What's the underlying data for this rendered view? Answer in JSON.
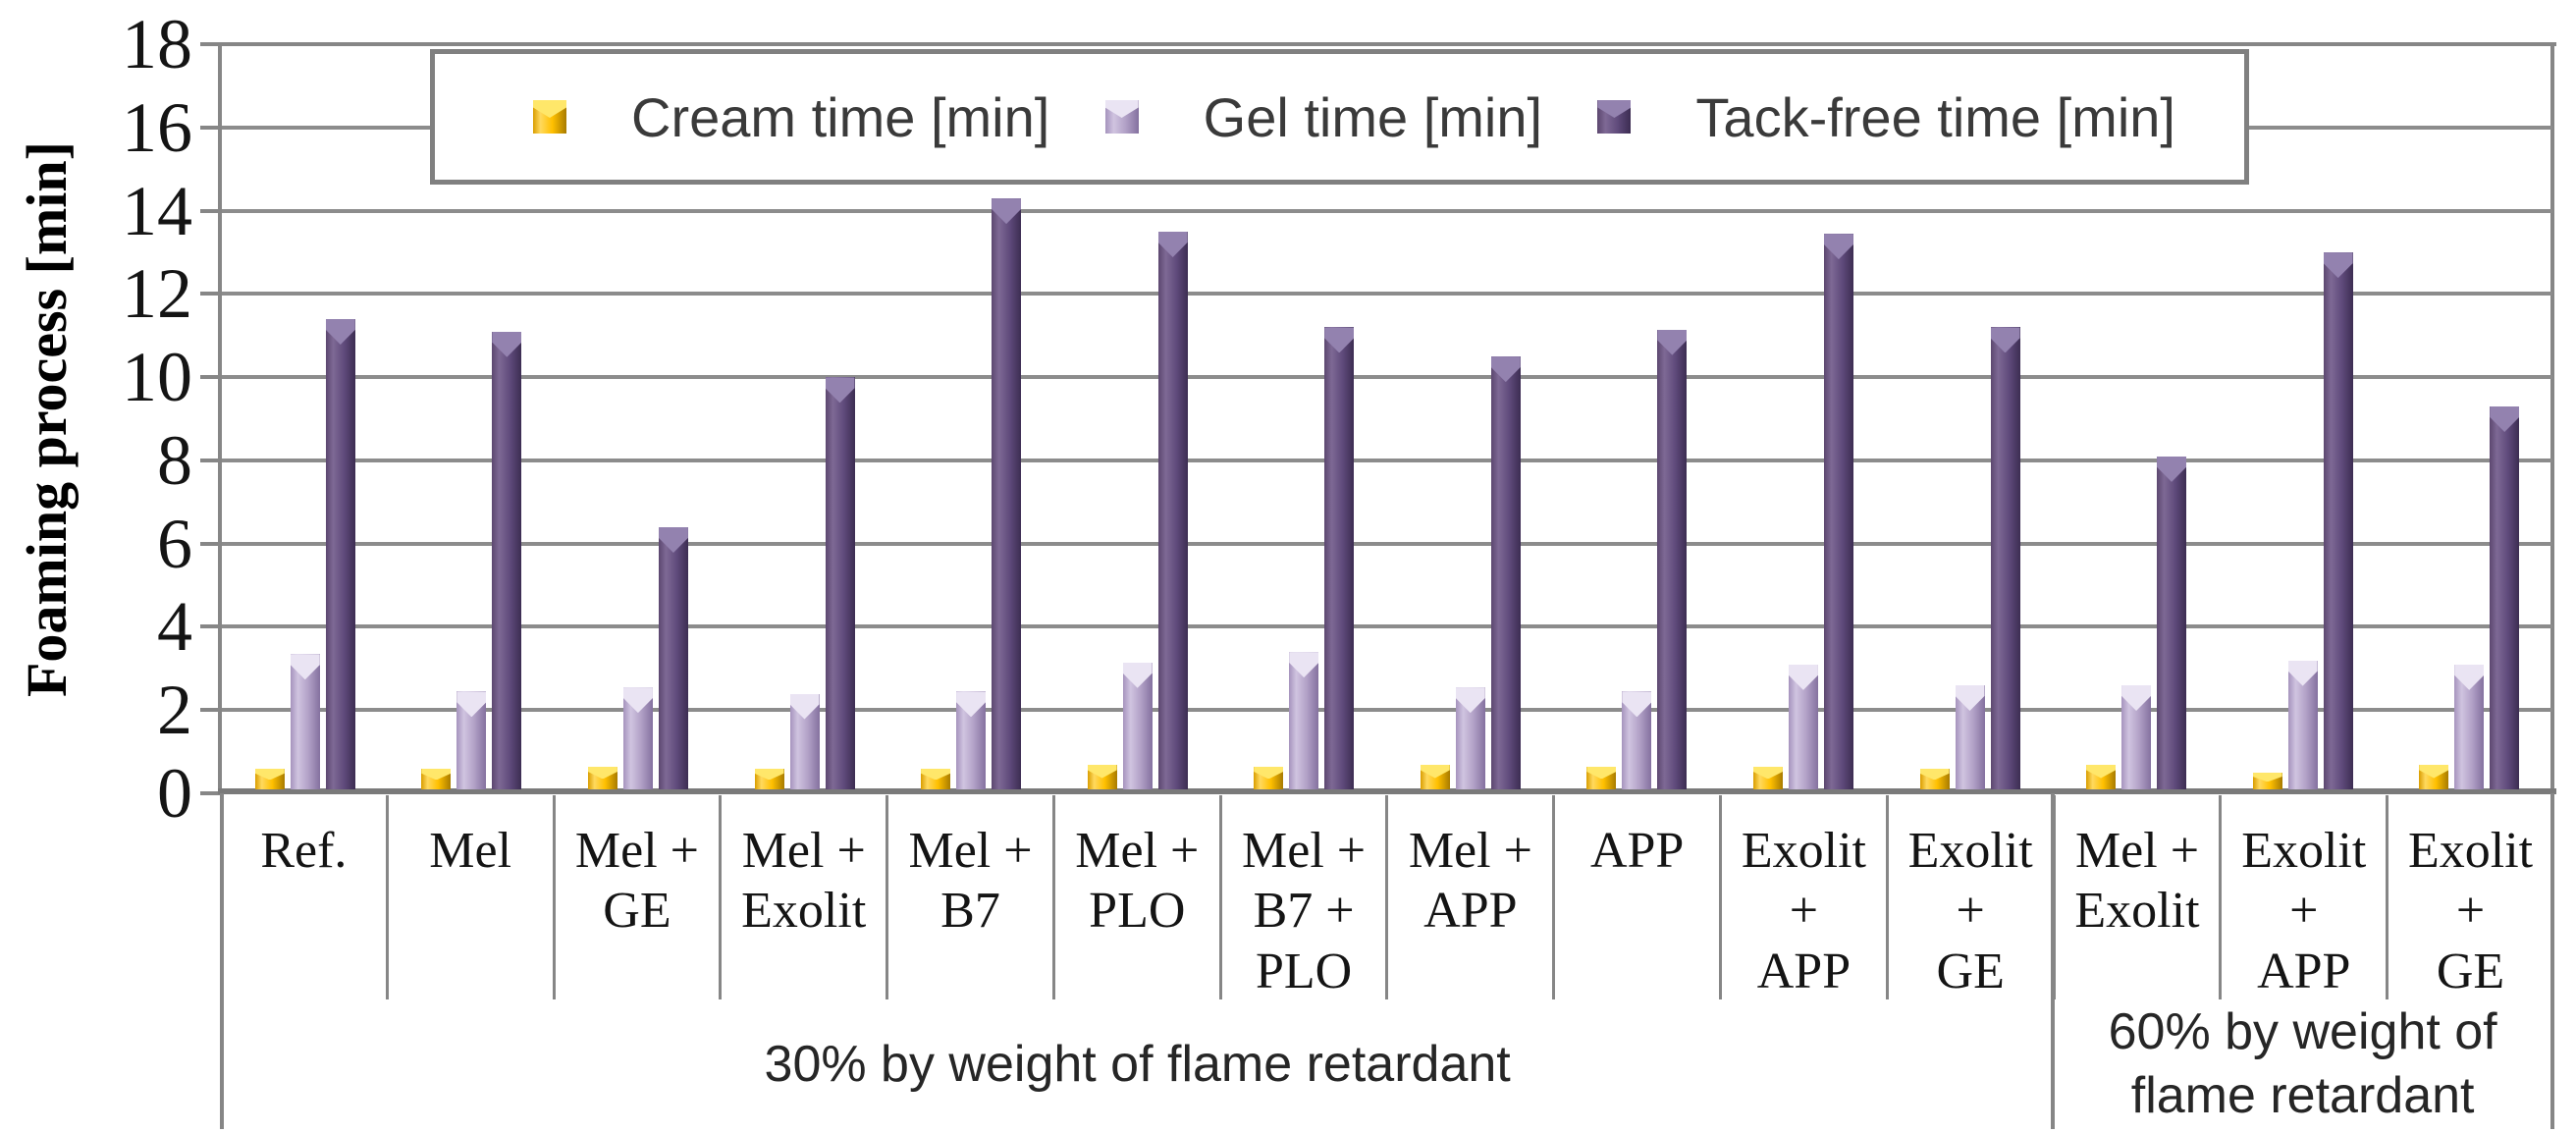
{
  "chart_data": {
    "type": "bar",
    "title": "",
    "xlabel": "",
    "ylabel": "Foaming process [min]",
    "ylim": [
      0,
      18
    ],
    "ytick_step": 2,
    "yticks": [
      0,
      2,
      4,
      6,
      8,
      10,
      12,
      14,
      16,
      18
    ],
    "grid": true,
    "legend_position": "top-center",
    "categories": [
      "Ref.",
      "Mel",
      "Mel + GE",
      "Mel + Exolit",
      "Mel + B7",
      "Mel + PLO",
      "Mel + B7 + PLO",
      "Mel + APP",
      "APP",
      "Exolit + APP",
      "Exolit + GE",
      "Mel + Exolit",
      "Exolit + APP",
      "Exolit + GE"
    ],
    "category_label_lines": [
      [
        "Ref."
      ],
      [
        "Mel"
      ],
      [
        "Mel +",
        "GE"
      ],
      [
        "Mel +",
        "Exolit"
      ],
      [
        "Mel +",
        "B7"
      ],
      [
        "Mel +",
        "PLO"
      ],
      [
        "Mel +",
        "B7 +",
        "PLO"
      ],
      [
        "Mel +",
        "APP"
      ],
      [
        "APP"
      ],
      [
        "Exolit +",
        "APP"
      ],
      [
        "Exolit +",
        "GE"
      ],
      [
        "Mel +",
        "Exolit"
      ],
      [
        "Exolit +",
        "APP"
      ],
      [
        "Exolit +",
        "GE"
      ]
    ],
    "groups": [
      {
        "label": "30% by weight of flame retardant",
        "start": 0,
        "end": 10
      },
      {
        "label": "60% by weight of flame retardant",
        "start": 11,
        "end": 13
      }
    ],
    "series": [
      {
        "key": "cream",
        "name": "Cream time [min]",
        "color": "#FFC000",
        "values": [
          0.5,
          0.5,
          0.55,
          0.5,
          0.5,
          0.6,
          0.55,
          0.6,
          0.55,
          0.55,
          0.5,
          0.6,
          0.4,
          0.6
        ]
      },
      {
        "key": "gel",
        "name": "Gel time [min]",
        "color": "#B2A1C7",
        "values": [
          3.25,
          2.35,
          2.45,
          2.3,
          2.35,
          3.05,
          3.3,
          2.45,
          2.35,
          3.0,
          2.5,
          2.5,
          3.1,
          3.0
        ]
      },
      {
        "key": "tackfree",
        "name": "Tack-free time [min]",
        "color": "#5F4A7B",
        "values": [
          11.3,
          11.0,
          6.3,
          9.9,
          14.2,
          13.4,
          11.1,
          10.4,
          11.05,
          13.35,
          11.1,
          8.0,
          12.9,
          9.2
        ]
      }
    ],
    "colors": {
      "gridline": "#8C8C8C",
      "axis": "#808080",
      "legend_border": "#808080",
      "tick_text": "#141414",
      "legend_text": "#3A3A3A"
    }
  }
}
